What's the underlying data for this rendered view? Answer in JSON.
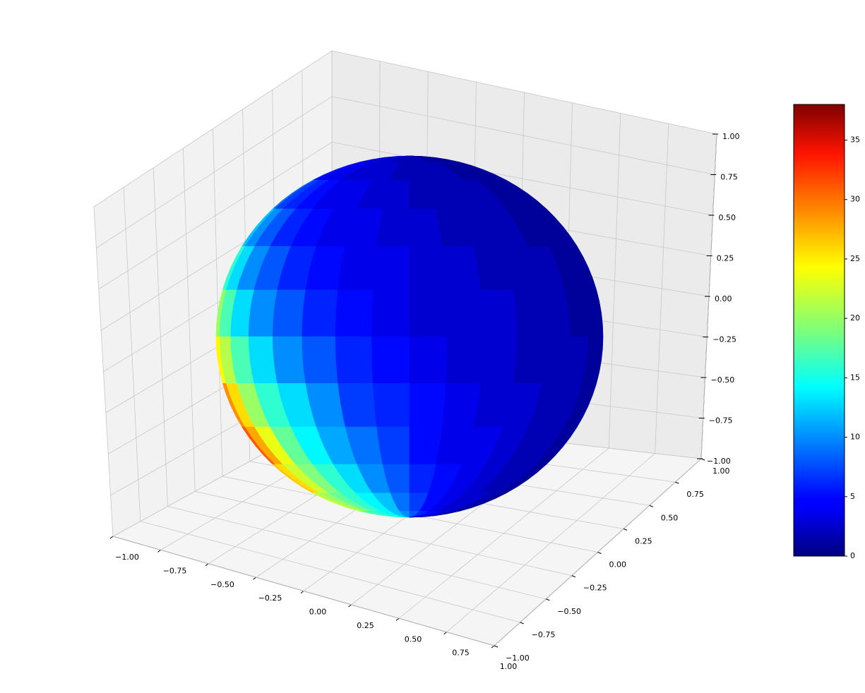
{
  "chart_data": {
    "type": "surface3d",
    "colormap": "jet",
    "xticks": [
      {
        "value": -1,
        "label": "−1.00"
      },
      {
        "value": -0.75,
        "label": "−0.75"
      },
      {
        "value": -0.5,
        "label": "−0.50"
      },
      {
        "value": -0.25,
        "label": "−0.25"
      },
      {
        "value": 0,
        "label": "0.00"
      },
      {
        "value": 0.25,
        "label": "0.25"
      },
      {
        "value": 0.5,
        "label": "0.50"
      },
      {
        "value": 0.75,
        "label": "0.75"
      },
      {
        "value": 1,
        "label": "1.00"
      }
    ],
    "yticks": [
      {
        "value": -1,
        "label": "−1.00"
      },
      {
        "value": -0.75,
        "label": "−0.75"
      },
      {
        "value": -0.5,
        "label": "−0.50"
      },
      {
        "value": -0.25,
        "label": "−0.25"
      },
      {
        "value": 0,
        "label": "0.00"
      },
      {
        "value": 0.25,
        "label": "0.25"
      },
      {
        "value": 0.5,
        "label": "0.50"
      },
      {
        "value": 0.75,
        "label": "0.75"
      },
      {
        "value": 1,
        "label": "1.00"
      }
    ],
    "zticks": [
      {
        "value": -1,
        "label": "−1.00"
      },
      {
        "value": -0.75,
        "label": "−0.75"
      },
      {
        "value": -0.5,
        "label": "−0.50"
      },
      {
        "value": -0.25,
        "label": "−0.25"
      },
      {
        "value": 0,
        "label": "0.00"
      },
      {
        "value": 0.25,
        "label": "0.25"
      },
      {
        "value": 0.5,
        "label": "0.50"
      },
      {
        "value": 0.75,
        "label": "0.75"
      },
      {
        "value": 1,
        "label": "1.00"
      }
    ],
    "xlim": [
      -1,
      1
    ],
    "ylim": [
      -1,
      1
    ],
    "zlim": [
      -1,
      1
    ],
    "clim": [
      0,
      38
    ],
    "cticks": [
      0,
      5,
      10,
      15,
      20,
      25,
      30,
      35
    ],
    "values": [
      [
        4,
        4,
        3,
        3,
        3,
        3,
        2,
        2,
        2,
        2,
        1,
        1,
        1,
        1,
        1,
        1
      ],
      [
        6,
        5,
        4,
        4,
        3,
        3,
        3,
        2,
        2,
        2,
        2,
        1,
        1,
        1,
        1,
        1
      ],
      [
        9,
        7,
        6,
        5,
        4,
        4,
        3,
        3,
        2,
        2,
        2,
        2,
        1,
        1,
        1,
        1
      ],
      [
        12,
        10,
        8,
        6,
        5,
        4,
        4,
        3,
        3,
        2,
        2,
        2,
        1,
        1,
        1,
        1
      ],
      [
        16,
        13,
        10,
        8,
        6,
        5,
        4,
        4,
        3,
        3,
        2,
        2,
        2,
        1,
        1,
        1
      ],
      [
        20,
        17,
        13,
        10,
        8,
        6,
        5,
        4,
        3,
        3,
        3,
        2,
        2,
        1,
        1,
        1
      ],
      [
        24,
        21,
        17,
        13,
        10,
        8,
        6,
        5,
        4,
        3,
        3,
        2,
        2,
        2,
        1,
        1
      ],
      [
        28,
        25,
        20,
        16,
        13,
        10,
        7,
        6,
        5,
        4,
        3,
        3,
        2,
        2,
        1,
        1
      ],
      [
        30,
        27,
        23,
        18,
        14,
        11,
        9,
        7,
        5,
        4,
        4,
        3,
        2,
        2,
        1,
        1
      ],
      [
        26,
        25,
        22,
        19,
        16,
        13,
        10,
        8,
        6,
        5,
        4,
        3,
        2,
        2,
        1,
        1
      ],
      [
        22,
        21,
        20,
        18,
        16,
        14,
        12,
        9,
        7,
        5,
        4,
        3,
        3,
        2,
        1,
        1
      ],
      [
        18,
        18,
        17,
        16,
        15,
        14,
        12,
        10,
        8,
        6,
        5,
        4,
        3,
        2,
        2,
        1
      ]
    ]
  }
}
